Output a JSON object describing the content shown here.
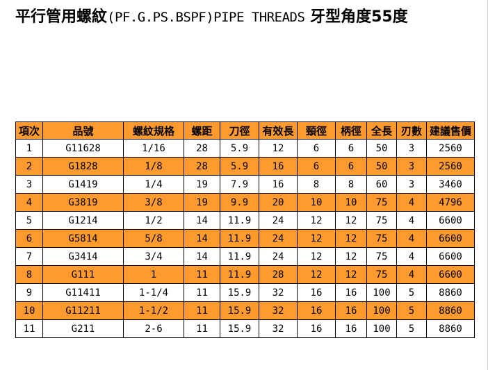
{
  "title": {
    "part1": "平行管用螺紋",
    "part2": "(PF.G.PS.BSPF)PIPE THREADS",
    "part3": " 牙型角度55度"
  },
  "colors": {
    "header_bg": "#ff9a2e",
    "stripe_bg": "#ff9a2e",
    "row_bg": "#ffffff"
  },
  "table": {
    "headers": [
      "項次",
      "品號",
      "螺紋規格",
      "螺距",
      "刀徑",
      "有效長",
      "頸徑",
      "柄徑",
      "全長",
      "刃數",
      "建議售價"
    ],
    "rows": [
      [
        "1",
        "G11628",
        "1/16",
        "28",
        "5.9",
        "12",
        "6",
        "6",
        "50",
        "3",
        "2560"
      ],
      [
        "2",
        "G1828",
        "1/8",
        "28",
        "5.9",
        "16",
        "6",
        "6",
        "50",
        "3",
        "2560"
      ],
      [
        "3",
        "G1419",
        "1/4",
        "19",
        "7.9",
        "16",
        "8",
        "8",
        "60",
        "3",
        "3460"
      ],
      [
        "4",
        "G3819",
        "3/8",
        "19",
        "9.9",
        "20",
        "10",
        "10",
        "75",
        "4",
        "4796"
      ],
      [
        "5",
        "G1214",
        "1/2",
        "14",
        "11.9",
        "24",
        "12",
        "12",
        "75",
        "4",
        "6600"
      ],
      [
        "6",
        "G5814",
        "5/8",
        "14",
        "11.9",
        "24",
        "12",
        "12",
        "75",
        "4",
        "6600"
      ],
      [
        "7",
        "G3414",
        "3/4",
        "14",
        "11.9",
        "24",
        "12",
        "12",
        "75",
        "4",
        "6600"
      ],
      [
        "8",
        "G111",
        "1",
        "11",
        "11.9",
        "28",
        "12",
        "12",
        "75",
        "4",
        "6600"
      ],
      [
        "9",
        "G11411",
        "1-1/4",
        "11",
        "15.9",
        "32",
        "16",
        "16",
        "100",
        "5",
        "8860"
      ],
      [
        "10",
        "G11211",
        "1-1/2",
        "11",
        "15.9",
        "32",
        "16",
        "16",
        "100",
        "5",
        "8860"
      ],
      [
        "11",
        "G211",
        "2-6",
        "11",
        "15.9",
        "32",
        "16",
        "16",
        "100",
        "5",
        "8860"
      ]
    ]
  }
}
